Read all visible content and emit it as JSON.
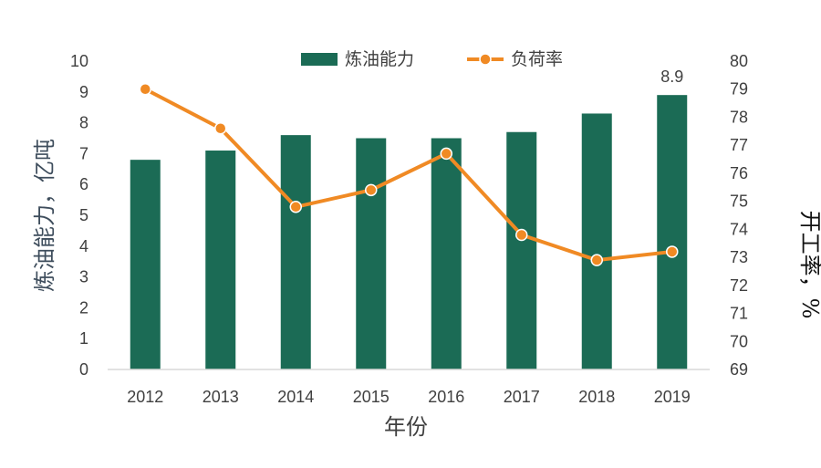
{
  "chart_data": {
    "type": "bar",
    "categories": [
      "2012",
      "2013",
      "2014",
      "2015",
      "2016",
      "2017",
      "2018",
      "2019"
    ],
    "series": [
      {
        "name": "炼油能力",
        "type": "bar",
        "axis": "left",
        "color": "#1b6b55",
        "values": [
          6.8,
          7.1,
          7.6,
          7.5,
          7.5,
          7.7,
          8.3,
          8.9
        ],
        "data_labels": [
          "",
          "",
          "",
          "",
          "",
          "",
          "",
          "8.9"
        ]
      },
      {
        "name": "负荷率",
        "type": "line",
        "axis": "right",
        "color": "#f08a24",
        "marker_fill": "#f08a24",
        "marker_stroke": "#ffffff",
        "values": [
          79.0,
          77.6,
          74.8,
          75.4,
          76.7,
          73.8,
          72.9,
          73.2
        ]
      }
    ],
    "xlabel": "年份",
    "ylabel_left": "炼油能力，亿吨",
    "ylabel_right": "开工率，%",
    "ylim_left": [
      0,
      10
    ],
    "ylim_right": [
      69,
      80
    ],
    "yticks_left": [
      "0",
      "1",
      "2",
      "3",
      "4",
      "5",
      "6",
      "7",
      "8",
      "9",
      "10"
    ],
    "yticks_right": [
      "69",
      "70",
      "71",
      "72",
      "73",
      "74",
      "75",
      "76",
      "77",
      "78",
      "79",
      "80"
    ],
    "grid": false,
    "legend_position": "top"
  }
}
